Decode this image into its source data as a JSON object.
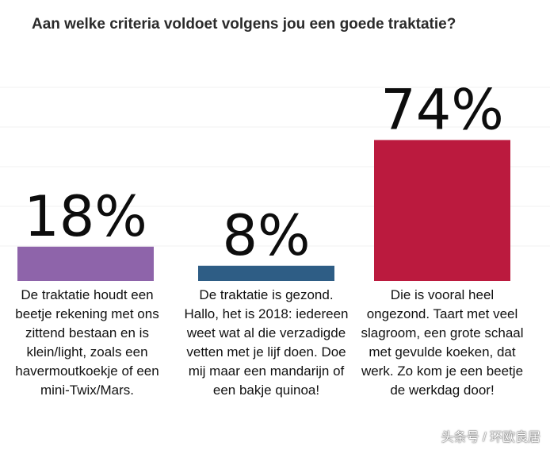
{
  "chart_data": {
    "type": "bar",
    "title": "Aan welke criteria voldoet volgens jou een goede traktatie?",
    "categories": [
      "De traktatie houdt een beetje rekening met ons zittend bestaan en is klein/light, zoals een havermoutkoekje of een mini-Twix/Mars.",
      "De traktatie is gezond. Hallo, het is 2018: iedereen weet wat al die verzadigde vetten met je lijf doen. Doe mij maar een mandarijn of een bakje quinoa!",
      "Die is vooral heel ongezond. Taart met veel slagroom, een grote schaal met gevulde koeken, dat werk. Zo kom je een beetje de werkdag door!"
    ],
    "values": [
      18,
      8,
      74
    ],
    "value_labels": [
      "18%",
      "8%",
      "74%"
    ],
    "colors": [
      "#8e64aa",
      "#2e5d85",
      "#bb1a3e"
    ],
    "xlabel": "",
    "ylabel": "",
    "ylim": [
      0,
      75
    ],
    "grid": true,
    "legend": "none"
  },
  "watermark": "头条号 / 环欧良居"
}
